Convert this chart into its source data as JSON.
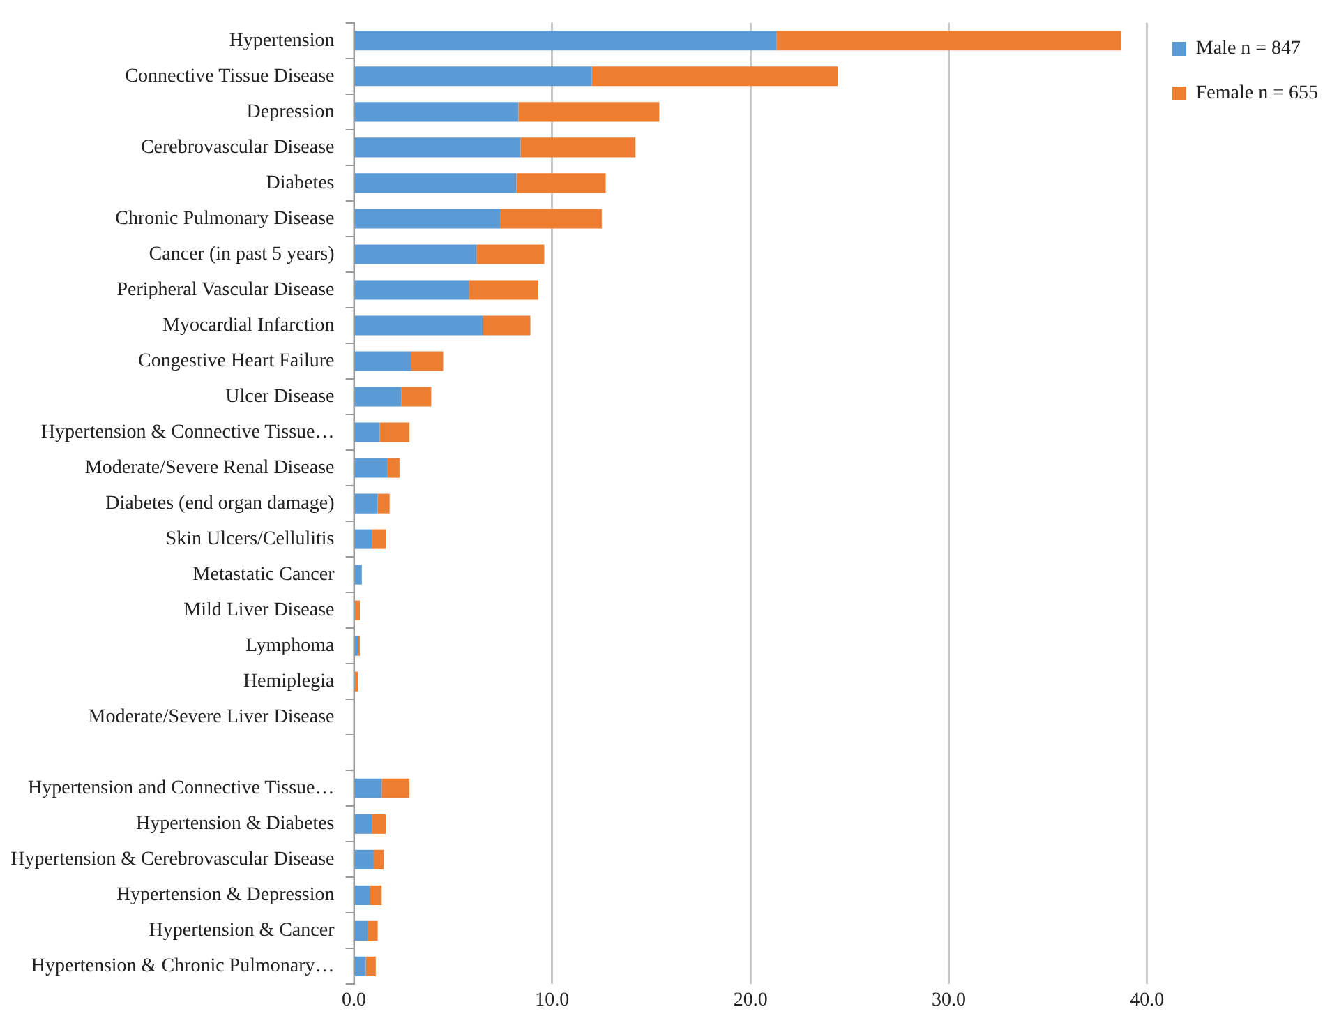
{
  "chart_data": {
    "type": "bar",
    "orientation": "horizontal",
    "stacked": true,
    "categories": [
      "Hypertension",
      "Connective Tissue Disease",
      "Depression",
      "Cerebrovascular Disease",
      "Diabetes",
      "Chronic Pulmonary Disease",
      "Cancer (in past 5 years)",
      "Peripheral Vascular Disease",
      "Myocardial Infarction",
      "Congestive Heart Failure",
      "Ulcer Disease",
      "Hypertension & Connective Tissue…",
      "Moderate/Severe Renal Disease",
      "Diabetes (end organ damage)",
      "Skin Ulcers/Cellulitis",
      "Metastatic Cancer",
      "Mild Liver Disease",
      "Lymphoma",
      "Hemiplegia",
      "Moderate/Severe Liver Disease",
      null,
      "Hypertension and Connective Tissue…",
      "Hypertension & Diabetes",
      "Hypertension & Cerebrovascular Disease",
      "Hypertension & Depression",
      "Hypertension & Cancer",
      "Hypertension & Chronic Pulmonary…"
    ],
    "series": [
      {
        "name": "Male n = 847",
        "color": "#5b9bd5",
        "values": [
          21.3,
          12.0,
          8.3,
          8.4,
          8.2,
          7.4,
          6.2,
          5.8,
          6.5,
          2.9,
          2.4,
          1.3,
          1.7,
          1.2,
          0.9,
          0.4,
          0,
          0.2,
          0,
          0,
          null,
          1.4,
          0.9,
          1.0,
          0.8,
          0.7,
          0.6
        ]
      },
      {
        "name": "Female n = 655",
        "color": "#ed7d31",
        "values": [
          17.4,
          12.4,
          7.1,
          5.8,
          4.5,
          5.1,
          3.4,
          3.5,
          2.4,
          1.6,
          1.5,
          1.5,
          0.6,
          0.6,
          0.7,
          0,
          0.3,
          0.1,
          0.2,
          0,
          null,
          1.4,
          0.7,
          0.5,
          0.6,
          0.5,
          0.5
        ]
      }
    ],
    "xlim": [
      0,
      40
    ],
    "xticks": [
      {
        "value": 0,
        "label": "0.0"
      },
      {
        "value": 10,
        "label": "10.0"
      },
      {
        "value": 20,
        "label": "20.0"
      },
      {
        "value": 30,
        "label": "30.0"
      },
      {
        "value": 40,
        "label": "40.0"
      }
    ],
    "grid": "x",
    "legend": "right"
  }
}
